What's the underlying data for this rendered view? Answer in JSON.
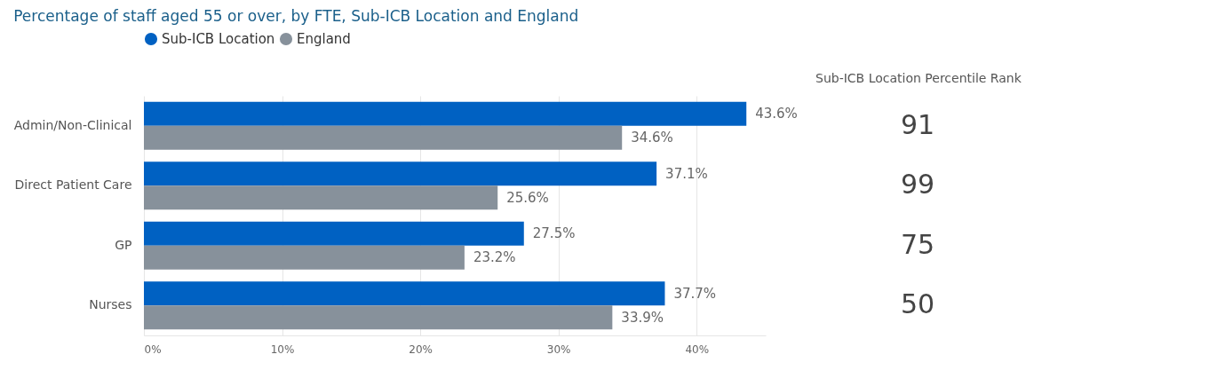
{
  "chart_data": [
    {
      "type": "bar",
      "orientation": "horizontal",
      "title": "Percentage of staff aged 55 or over, by FTE, Sub-ICB Location and England",
      "categories": [
        "Admin/Non-Clinical",
        "Direct Patient Care",
        "GP",
        "Nurses"
      ],
      "series": [
        {
          "name": "Sub-ICB Location",
          "color": "#0061c2",
          "values": [
            43.6,
            37.1,
            27.5,
            37.7
          ],
          "value_labels": [
            "43.6%",
            "37.1%",
            "27.5%",
            "37.7%"
          ]
        },
        {
          "name": "England",
          "color": "#87919b",
          "values": [
            34.6,
            25.6,
            23.2,
            33.9
          ],
          "value_labels": [
            "34.6%",
            "25.6%",
            "23.2%",
            "33.9%"
          ]
        }
      ],
      "xlim": [
        0,
        45
      ],
      "xticks": [
        {
          "value": 0,
          "label": "0%"
        },
        {
          "value": 10,
          "label": "10%"
        },
        {
          "value": 20,
          "label": "20%"
        },
        {
          "value": 30,
          "label": "30%"
        },
        {
          "value": 40,
          "label": "40%"
        }
      ],
      "grid": "x",
      "legend": "top left"
    },
    {
      "type": "other",
      "title": "Sub-ICB Location Percentile Rank",
      "values": [
        91,
        99,
        75,
        50
      ],
      "data_labels": true
    }
  ]
}
